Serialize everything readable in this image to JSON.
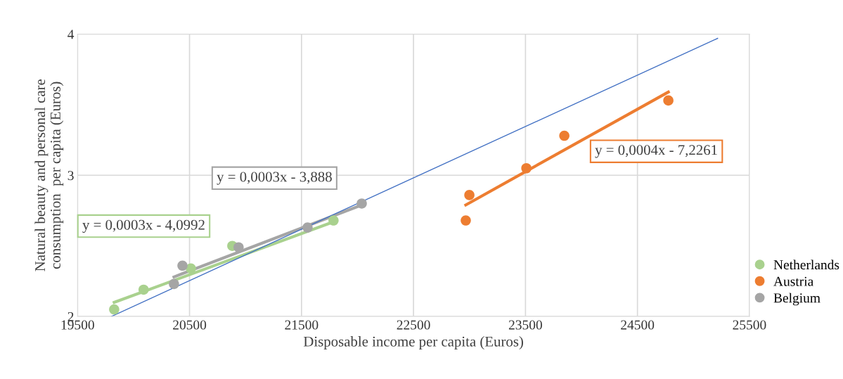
{
  "chart_data": {
    "type": "scatter",
    "xlabel": "Disposable income per capita (Euros)",
    "ylabel": "Natural beauty and personal care\nconsumption  per capita (Euros)",
    "xlim": [
      19500,
      25500
    ],
    "xticks": [
      19500,
      20500,
      21500,
      22500,
      23500,
      24500,
      25500
    ],
    "ylim": [
      2,
      4
    ],
    "yticks": [
      2,
      3,
      4
    ],
    "grid": true,
    "legend": "right",
    "marker": "circle",
    "series": [
      {
        "name": "Netherlands",
        "color": "#a9d18e",
        "x": [
          19827,
          20090,
          20512,
          20882,
          21786
        ],
        "values": [
          2.05,
          2.19,
          2.34,
          2.5,
          2.68
        ]
      },
      {
        "name": "Austria",
        "color": "#ed7d31",
        "x": [
          22967,
          22999,
          23508,
          23847,
          24776
        ],
        "values": [
          2.68,
          2.86,
          3.05,
          3.28,
          3.53
        ]
      },
      {
        "name": "Belgium",
        "color": "#a5a5a5",
        "x": [
          20361,
          20437,
          20938,
          21554,
          22038
        ],
        "values": [
          2.23,
          2.36,
          2.49,
          2.63,
          2.8
        ]
      },
      {
        "type": "line",
        "marker": "none",
        "color": "#a9d18e",
        "x": [
          19827,
          21786
        ],
        "values": [
          2.1,
          2.67
        ]
      },
      {
        "type": "line",
        "marker": "none",
        "color": "#a5a5a5",
        "x": [
          20361,
          22038
        ],
        "values": [
          2.28,
          2.79
        ]
      },
      {
        "type": "line",
        "marker": "none",
        "color": "#ed7d31",
        "x": [
          22967,
          24776
        ],
        "values": [
          2.79,
          3.59
        ]
      },
      {
        "type": "line",
        "marker": "none",
        "color": "#4472c4",
        "x": [
          19802,
          25216
        ],
        "values": [
          2.0,
          3.97
        ]
      }
    ],
    "annotations": [
      "y = 0,0003x - 4,0992",
      "y = 0,0003x - 3,888",
      "y = 0,0004x - 7,2261"
    ]
  }
}
